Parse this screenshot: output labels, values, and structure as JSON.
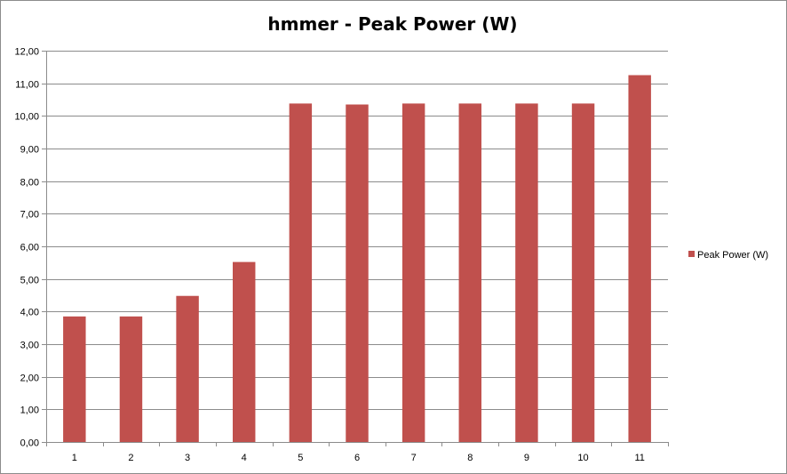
{
  "chart_data": {
    "type": "bar",
    "title": "hmmer - Peak Power (W)",
    "xlabel": "",
    "ylabel": "",
    "categories": [
      "1",
      "2",
      "3",
      "4",
      "5",
      "6",
      "7",
      "8",
      "9",
      "10",
      "11"
    ],
    "series": [
      {
        "name": "Peak Power (W)",
        "color": "#c0504d",
        "values": [
          3.85,
          3.85,
          4.48,
          5.52,
          10.38,
          10.35,
          10.38,
          10.38,
          10.38,
          10.38,
          11.25
        ]
      }
    ],
    "ylim": [
      0,
      12
    ],
    "ytick_labels": [
      "0,00",
      "1,00",
      "2,00",
      "3,00",
      "4,00",
      "5,00",
      "6,00",
      "7,00",
      "8,00",
      "9,00",
      "10,00",
      "11,00",
      "12,00"
    ],
    "grid": true,
    "legend_position": "right"
  }
}
